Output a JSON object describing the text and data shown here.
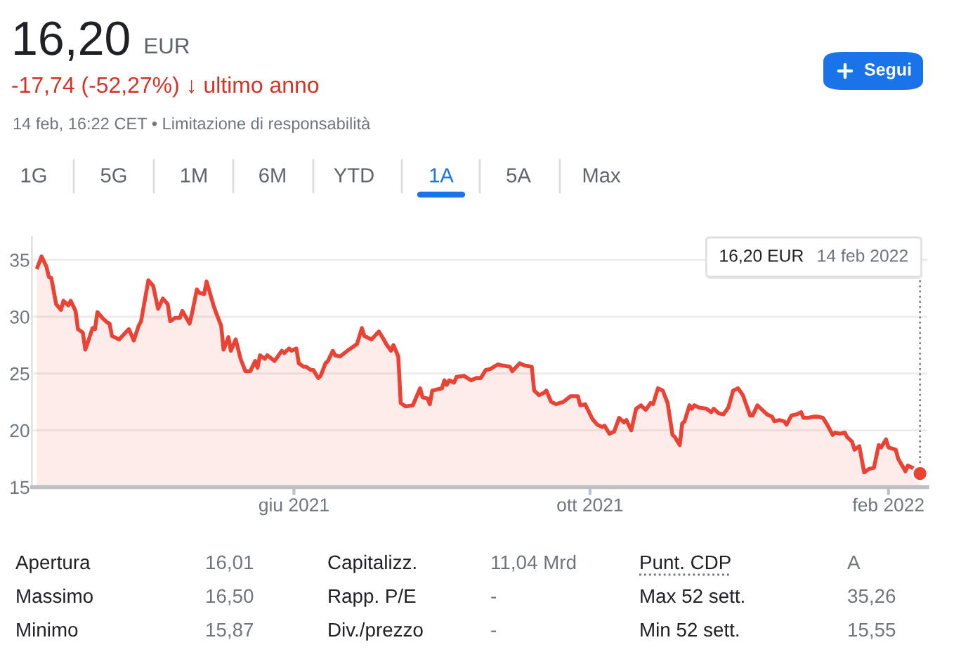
{
  "chart_data": {
    "type": "area",
    "title": "16,20 EUR",
    "subtitle": "-17,74 (-52,27%) ↓ ultimo anno",
    "annotations": [
      "14 feb, 16:22 CET • Limitazione di responsabilità",
      "1G",
      "5G",
      "1M",
      "6M",
      "YTD",
      "1A",
      "5A",
      "Max",
      "Segui",
      "16,20 EUR",
      {
        "text": "14 feb 2022",
        "x": "2022-02-14",
        "y": 16.2
      },
      "Apertura",
      "16,01",
      "Capitalizz.",
      "11,04 Mrd",
      "Punt. CDP",
      "A",
      "Massimo",
      "16,50",
      "Rapp. P/E",
      "-",
      "Max 52 sett.",
      "35,26",
      "Minimo",
      "15,87",
      "Div./prezzo",
      "-",
      "Min 52 sett.",
      "15,55"
    ],
    "series": [
      {
        "color": "#ea4335",
        "x": [
          "2021-02-15",
          "2021-02-17",
          "2021-02-19",
          "2021-02-20",
          "2021-02-21",
          "2021-02-23",
          "2021-02-25",
          "2021-02-26",
          "2021-02-28",
          "2021-03-01",
          "2021-03-03",
          "2021-03-04",
          "2021-03-06",
          "2021-03-07",
          "2021-03-08",
          "2021-03-10",
          "2021-03-11",
          "2021-03-12",
          "2021-03-14",
          "2021-03-16",
          "2021-03-17",
          "2021-03-18",
          "2021-03-21",
          "2021-03-24",
          "2021-03-25",
          "2021-03-27",
          "2021-03-29",
          "2021-03-30",
          "2021-04-02",
          "2021-04-04",
          "2021-04-06",
          "2021-04-08",
          "2021-04-10",
          "2021-04-11",
          "2021-04-13",
          "2021-04-15",
          "2021-04-16",
          "2021-04-19",
          "2021-04-20",
          "2021-04-22",
          "2021-04-23",
          "2021-04-25",
          "2021-04-26",
          "2021-04-29",
          "2021-04-30",
          "2021-05-02",
          "2021-05-03",
          "2021-05-05",
          "2021-05-06",
          "2021-05-08",
          "2021-05-10",
          "2021-05-12",
          "2021-05-14",
          "2021-05-16",
          "2021-05-17",
          "2021-05-18",
          "2021-05-20",
          "2021-05-21",
          "2021-05-24",
          "2021-05-27",
          "2021-05-28",
          "2021-05-30",
          "2021-05-31",
          "2021-06-02",
          "2021-06-03",
          "2021-06-05",
          "2021-06-06",
          "2021-06-08",
          "2021-06-09",
          "2021-06-11",
          "2021-06-12",
          "2021-06-14",
          "2021-06-15",
          "2021-06-17",
          "2021-06-18",
          "2021-06-20",
          "2021-06-23",
          "2021-06-25",
          "2021-06-27",
          "2021-06-29",
          "2021-06-30",
          "2021-07-03",
          "2021-07-06",
          "2021-07-08",
          "2021-07-09",
          "2021-07-11",
          "2021-07-12",
          "2021-07-14",
          "2021-07-15",
          "2021-07-17",
          "2021-07-20",
          "2021-07-23",
          "2021-07-24",
          "2021-07-26",
          "2021-07-27",
          "2021-07-28",
          "2021-08-01",
          "2021-08-02",
          "2021-08-03",
          "2021-08-04",
          "2021-08-06",
          "2021-08-07",
          "2021-08-10",
          "2021-08-13",
          "2021-08-15",
          "2021-08-17",
          "2021-08-19",
          "2021-08-21",
          "2021-08-24",
          "2021-08-26",
          "2021-08-29",
          "2021-08-30",
          "2021-09-02",
          "2021-09-04",
          "2021-09-07",
          "2021-09-08",
          "2021-09-10",
          "2021-09-12",
          "2021-09-13",
          "2021-09-15",
          "2021-09-17",
          "2021-09-20",
          "2021-09-23",
          "2021-09-26",
          "2021-09-27",
          "2021-09-29",
          "2021-10-02",
          "2021-10-04",
          "2021-10-06",
          "2021-10-07",
          "2021-10-09",
          "2021-10-11",
          "2021-10-13",
          "2021-10-15",
          "2021-10-16",
          "2021-10-18",
          "2021-10-20",
          "2021-10-22",
          "2021-10-24",
          "2021-10-26",
          "2021-10-27",
          "2021-10-29",
          "2021-10-31",
          "2021-11-02",
          "2021-11-04",
          "2021-11-05",
          "2021-11-07",
          "2021-11-08",
          "2021-11-09",
          "2021-11-11",
          "2021-11-12",
          "2021-11-13",
          "2021-11-15",
          "2021-11-18",
          "2021-11-20",
          "2021-11-21",
          "2021-11-23",
          "2021-11-25",
          "2021-11-27",
          "2021-11-29",
          "2021-12-01",
          "2021-12-03",
          "2021-12-06",
          "2021-12-07",
          "2021-12-09",
          "2021-12-11",
          "2021-12-13",
          "2021-12-15",
          "2021-12-16",
          "2021-12-18",
          "2021-12-20",
          "2021-12-21",
          "2021-12-23",
          "2021-12-25",
          "2021-12-27",
          "2021-12-28",
          "2021-12-30",
          "2022-01-01",
          "2022-01-03",
          "2022-01-05",
          "2022-01-07",
          "2022-01-09",
          "2022-01-10",
          "2022-01-12",
          "2022-01-14",
          "2022-01-15",
          "2022-01-17",
          "2022-01-18",
          "2022-01-20",
          "2022-01-22",
          "2022-01-24",
          "2022-01-26",
          "2022-01-28",
          "2022-01-29",
          "2022-01-31",
          "2022-02-01",
          "2022-02-04",
          "2022-02-05",
          "2022-02-08",
          "2022-02-09",
          "2022-02-11",
          "2022-02-12",
          "2022-02-14"
        ],
        "values": [
          34.2,
          35.3,
          34.4,
          33.5,
          33.4,
          31.1,
          30.6,
          31.4,
          31.0,
          31.4,
          30.5,
          28.9,
          28.6,
          27.1,
          27.7,
          29.0,
          28.9,
          30.4,
          29.9,
          29.5,
          29.4,
          28.3,
          28.0,
          28.7,
          28.9,
          27.9,
          29.2,
          29.6,
          33.2,
          32.7,
          30.7,
          31.6,
          31.1,
          29.6,
          29.9,
          29.9,
          30.5,
          29.4,
          30.3,
          32.4,
          32.1,
          32.0,
          33.1,
          30.9,
          30.3,
          29.2,
          27.1,
          28.2,
          27.0,
          28.0,
          26.3,
          25.2,
          25.2,
          26.1,
          25.5,
          26.6,
          26.3,
          26.6,
          26.1,
          27.0,
          26.8,
          27.2,
          27.0,
          27.2,
          25.9,
          25.6,
          25.6,
          25.3,
          25.3,
          24.6,
          24.8,
          25.9,
          26.1,
          27.0,
          26.6,
          26.5,
          27.0,
          27.3,
          27.6,
          29.0,
          28.3,
          28.0,
          28.7,
          28.0,
          27.6,
          27.0,
          27.5,
          26.5,
          22.4,
          22.1,
          22.2,
          23.7,
          22.9,
          22.8,
          22.3,
          23.5,
          23.7,
          24.4,
          24.0,
          24.4,
          24.2,
          24.7,
          24.8,
          24.4,
          24.6,
          24.6,
          25.3,
          25.4,
          25.8,
          25.7,
          25.6,
          25.2,
          25.9,
          25.7,
          25.6,
          23.5,
          23.1,
          23.3,
          23.5,
          22.5,
          22.3,
          22.5,
          23.0,
          23.0,
          22.2,
          22.3,
          21.0,
          20.5,
          20.3,
          20.4,
          19.7,
          19.9,
          21.1,
          20.7,
          20.9,
          20.0,
          21.9,
          22.2,
          21.8,
          22.4,
          22.3,
          23.7,
          23.5,
          22.4,
          19.6,
          19.4,
          18.7,
          20.6,
          20.8,
          22.2,
          21.9,
          22.2,
          22.0,
          21.9,
          21.6,
          21.9,
          21.5,
          21.4,
          22.0,
          23.5,
          23.7,
          23.1,
          21.3,
          21.3,
          22.2,
          21.8,
          21.4,
          21.2,
          20.8,
          20.9,
          20.8,
          20.5,
          21.3,
          21.4,
          21.6,
          21.1,
          21.1,
          21.2,
          21.2,
          21.1,
          20.4,
          19.6,
          19.8,
          19.7,
          19.8,
          19.4,
          19.0,
          18.3,
          18.6,
          16.3,
          16.6,
          16.7,
          18.7,
          18.5,
          19.2,
          18.5,
          18.3,
          17.5,
          16.4,
          16.9,
          16.7,
          16.4,
          16.2
        ]
      },
      {
        "type": "scatter",
        "color": "#ea4335",
        "x": [
          "2022-02-14"
        ],
        "values": [
          16.2
        ]
      }
    ],
    "xlim": [
      "2021-02-13",
      "2022-02-17"
    ],
    "xticks": [
      {
        "value": "2021-06-01",
        "label": "giu 2021"
      },
      {
        "value": "2021-10-01",
        "label": "ott 2021"
      },
      {
        "value": "2022-02-01",
        "label": "feb 2022"
      }
    ],
    "ylim": [
      15,
      37
    ],
    "yticks": [
      15,
      20,
      25,
      30,
      35
    ],
    "grid": "y"
  }
}
